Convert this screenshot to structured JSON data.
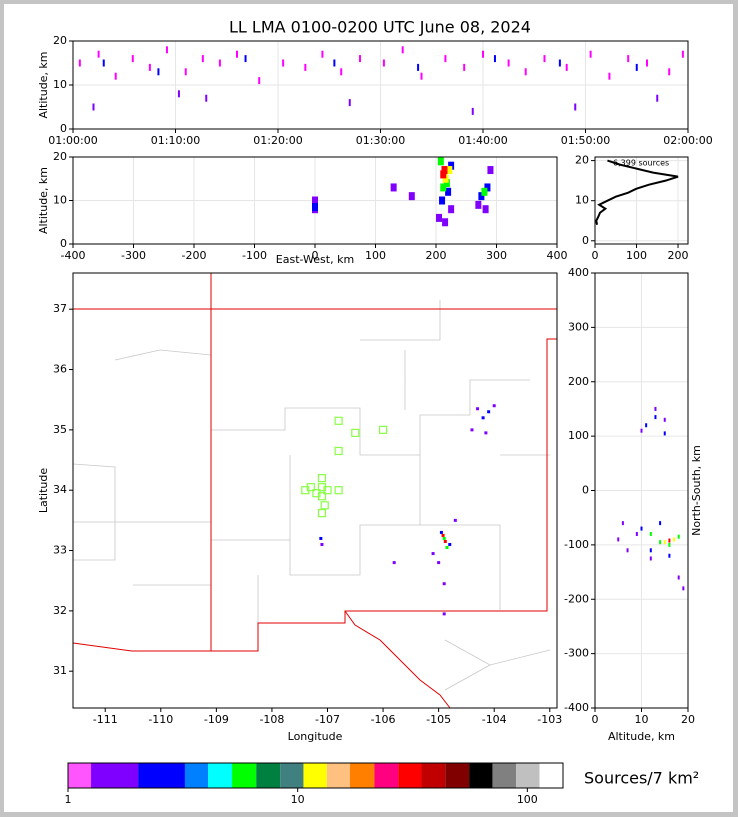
{
  "chart_data": [
    {
      "type": "scatter",
      "title": "LL LMA 0100-0200 UTC June 08, 2024",
      "ylabel": "Altitude, km",
      "xlim": [
        "01:00:00",
        "02:00:00"
      ],
      "xticks": [
        "01:00:00",
        "01:10:00",
        "01:20:00",
        "01:30:00",
        "01:40:00",
        "01:50:00",
        "02:00:00"
      ],
      "ylim": [
        0,
        20
      ],
      "yticks": [
        0,
        10,
        20
      ],
      "grid": true,
      "series": [
        {
          "color": "#ff00ff",
          "x": [
            "01:00:40",
            "01:02:30",
            "01:04:10",
            "01:05:50",
            "01:07:30",
            "01:09:10",
            "01:11:00",
            "01:12:40",
            "01:14:20",
            "01:16:00",
            "01:18:10",
            "01:20:30",
            "01:22:40",
            "01:24:20",
            "01:26:10",
            "01:28:00",
            "01:30:20",
            "01:32:10",
            "01:34:00",
            "01:36:20",
            "01:38:10",
            "01:40:00",
            "01:42:30",
            "01:44:10",
            "01:46:00",
            "01:48:10",
            "01:50:30",
            "01:52:20",
            "01:54:10",
            "01:56:00",
            "01:58:10",
            "01:59:30"
          ],
          "y": [
            15,
            17,
            12,
            16,
            14,
            18,
            13,
            16,
            15,
            17,
            11,
            15,
            14,
            17,
            13,
            16,
            15,
            18,
            12,
            16,
            14,
            17,
            15,
            13,
            16,
            14,
            17,
            12,
            16,
            15,
            13,
            17
          ]
        },
        {
          "color": "#0000ff",
          "x": [
            "01:03:00",
            "01:08:20",
            "01:16:50",
            "01:25:30",
            "01:33:40",
            "01:41:10",
            "01:47:30",
            "01:55:00"
          ],
          "y": [
            15,
            13,
            16,
            15,
            14,
            16,
            15,
            14
          ]
        },
        {
          "color": "#8000ff",
          "x": [
            "01:02:00",
            "01:10:20",
            "01:13:00",
            "01:27:00",
            "01:39:00",
            "01:49:00",
            "01:57:00"
          ],
          "y": [
            5,
            8,
            7,
            6,
            4,
            5,
            7
          ]
        }
      ]
    },
    {
      "type": "scatter",
      "xlabel": "East-West, km",
      "ylabel": "Altitude, km",
      "xlim": [
        -400,
        400
      ],
      "xticks": [
        -400,
        -300,
        -200,
        -100,
        0,
        100,
        200,
        300,
        400
      ],
      "ylim": [
        0,
        20
      ],
      "yticks": [
        0,
        10,
        20
      ],
      "grid": true,
      "series": [
        {
          "color": "#8000ff",
          "x": [
            0,
            0,
            130,
            160,
            205,
            225,
            270,
            290,
            215,
            282
          ],
          "y": [
            8,
            10,
            13,
            11,
            6,
            8,
            9,
            17,
            5,
            8
          ]
        },
        {
          "color": "#0000ff",
          "x": [
            210,
            220,
            275,
            285,
            0,
            225
          ],
          "y": [
            10,
            12,
            11,
            13,
            8.5,
            18
          ]
        },
        {
          "color": "#00ff00",
          "x": [
            212,
            218,
            280,
            208
          ],
          "y": [
            13,
            14,
            12,
            19
          ]
        },
        {
          "color": "#ffff00",
          "x": [
            213,
            216,
            222
          ],
          "y": [
            16,
            15,
            17
          ]
        },
        {
          "color": "#ff0000",
          "x": [
            214,
            212
          ],
          "y": [
            17,
            16
          ]
        }
      ]
    },
    {
      "type": "line",
      "annotation": "6,399 sources",
      "color": "#000000",
      "xlim": [
        0,
        224
      ],
      "xticks": [
        0,
        100,
        200
      ],
      "ylim": [
        -0.8,
        20.9
      ],
      "yticks": [
        0,
        10,
        20
      ],
      "grid": true,
      "x": [
        5,
        3,
        8,
        12,
        25,
        10,
        30,
        50,
        80,
        100,
        130,
        170,
        200,
        140,
        100,
        60,
        30
      ],
      "y": [
        4,
        5,
        6,
        7,
        8,
        9,
        10,
        11,
        12,
        13,
        14,
        15,
        16,
        17,
        18,
        19,
        20
      ]
    },
    {
      "type": "scatter",
      "xlabel": "Longitude",
      "ylabel": "Latitude",
      "xlim": [
        -111.58,
        -102.87
      ],
      "xticks": [
        -111,
        -110,
        -109,
        -108,
        -107,
        -106,
        -105,
        -104,
        -103
      ],
      "ylim": [
        30.39,
        37.6
      ],
      "yticks": [
        31,
        32,
        33,
        34,
        35,
        36,
        37
      ],
      "grid": false,
      "series": [
        {
          "color": "#8000ff",
          "x": [
            -105.0,
            -104.7,
            -105.1,
            -104.9,
            -104.4,
            -104.0,
            -104.3,
            -107.1,
            -105.8,
            -104.9,
            -104.15
          ],
          "y": [
            32.8,
            33.5,
            32.95,
            32.45,
            35.0,
            35.4,
            35.35,
            33.1,
            32.8,
            31.95,
            34.95
          ]
        },
        {
          "color": "#0000ff",
          "x": [
            -104.95,
            -104.8,
            -104.2,
            -104.1,
            -107.12
          ],
          "y": [
            33.3,
            33.1,
            35.2,
            35.3,
            33.2
          ]
        },
        {
          "color": "#00ff00",
          "x": [
            -104.9,
            -104.85
          ],
          "y": [
            33.2,
            33.05
          ]
        },
        {
          "color": "#ff0000",
          "x": [
            -104.92,
            -104.88
          ],
          "y": [
            33.25,
            33.15
          ]
        },
        {
          "color": "#88ff44",
          "marker": "square",
          "x": [
            -106.8,
            -106.5,
            -106.0,
            -106.8,
            -107.1,
            -107.3,
            -107.1,
            -107.0,
            -106.8,
            -107.4,
            -107.2,
            -107.1,
            -107.05,
            -107.1
          ],
          "y": [
            35.15,
            34.95,
            35.0,
            34.65,
            34.2,
            34.05,
            34.05,
            34.0,
            34.0,
            34.0,
            33.95,
            33.9,
            33.75,
            33.62
          ]
        }
      ]
    },
    {
      "type": "scatter",
      "xlabel": "Altitude, km",
      "ylabel": "North-South, km",
      "xlim": [
        0,
        20
      ],
      "xticks": [
        0,
        10,
        20
      ],
      "ylim": [
        -400,
        400
      ],
      "yticks": [
        -400,
        -300,
        -200,
        -100,
        0,
        100,
        200,
        300,
        400
      ],
      "grid": true,
      "series": [
        {
          "color": "#8000ff",
          "x": [
            5,
            7,
            9,
            18,
            19,
            13,
            10,
            15,
            6,
            12
          ],
          "y": [
            -90,
            -110,
            -80,
            -160,
            -180,
            150,
            110,
            130,
            -60,
            -125
          ]
        },
        {
          "color": "#0000ff",
          "x": [
            10,
            12,
            14,
            16,
            11,
            13,
            15
          ],
          "y": [
            -70,
            -110,
            -60,
            -120,
            120,
            135,
            105
          ]
        },
        {
          "color": "#00ff00",
          "x": [
            12,
            14,
            16,
            18
          ],
          "y": [
            -80,
            -95,
            -100,
            -85
          ]
        },
        {
          "color": "#ffff00",
          "x": [
            15,
            17
          ],
          "y": [
            -95,
            -90
          ]
        },
        {
          "color": "#ff0000",
          "x": [
            16
          ],
          "y": [
            -92
          ]
        }
      ]
    },
    {
      "type": "colorbar",
      "label": "Sources/7 km²",
      "log": true,
      "xlim": [
        1,
        143
      ],
      "xticks": [
        1,
        10,
        100
      ],
      "bounds": [
        1,
        1.26,
        2.02,
        3.23,
        4.07,
        5.18,
        6.6,
        8.4,
        10.6,
        13.4,
        16.9,
        21.6,
        27.4,
        34.6,
        43.9,
        55.8,
        70.5,
        89.4,
        113,
        143
      ],
      "colors": [
        "#ff55ff",
        "#8000ff",
        "#0000ff",
        "#0080ff",
        "#00ffff",
        "#00ff00",
        "#008040",
        "#408080",
        "#ffff00",
        "#ffc080",
        "#ff8000",
        "#ff0080",
        "#ff0000",
        "#c00000",
        "#800000",
        "#000000",
        "#808080",
        "#c0c0c0",
        "#ffffff"
      ]
    }
  ]
}
